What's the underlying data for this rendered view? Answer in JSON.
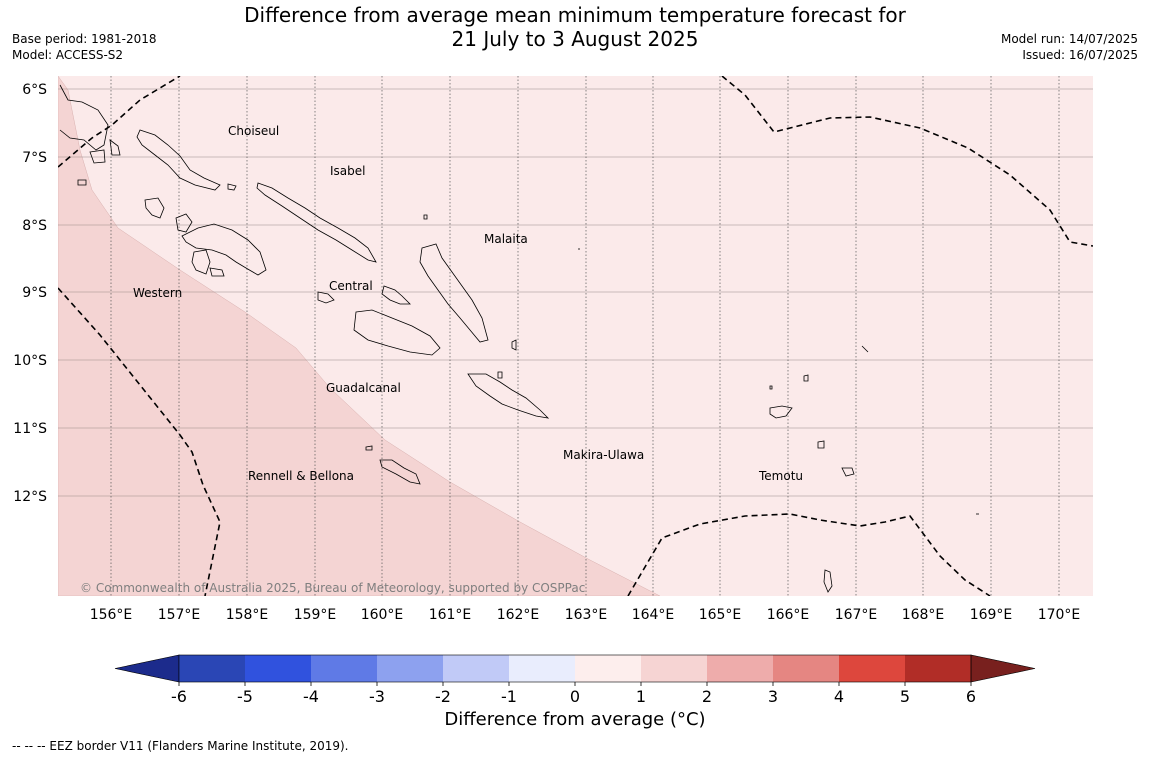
{
  "header": {
    "title_line1": "Difference from average mean minimum temperature forecast for",
    "title_line2": "21 July to 3 August 2025",
    "base_period": "Base period: 1981-2018",
    "model": "Model: ACCESS-S2",
    "model_run": "Model run: 14/07/2025",
    "issued": "Issued: 16/07/2025"
  },
  "map": {
    "latitude_labels": [
      "6°S",
      "7°S",
      "8°S",
      "9°S",
      "10°S",
      "11°S",
      "12°S"
    ],
    "longitude_labels": [
      "156°E",
      "157°E",
      "158°E",
      "159°E",
      "160°E",
      "161°E",
      "162°E",
      "163°E",
      "164°E",
      "165°E",
      "166°E",
      "167°E",
      "168°E",
      "169°E",
      "170°E"
    ],
    "region_labels": [
      "Choiseul",
      "Isabel",
      "Malaita",
      "Western",
      "Central",
      "Guadalcanal",
      "Makira-Ulawa",
      "Temotu",
      "Rennell & Bellona"
    ],
    "copyright": "© Commonwealth of Australia 2025, Bureau of Meteorology, supported by COSPPac",
    "fill_colors": {
      "range_0_1": "#fbeaea",
      "range_1_2": "#f4d4d3"
    }
  },
  "colorbar": {
    "tick_labels": [
      "-6",
      "-5",
      "-4",
      "-3",
      "-2",
      "-1",
      "0",
      "1",
      "2",
      "3",
      "4",
      "5",
      "6"
    ],
    "colors": [
      "#1c2b8c",
      "#2a46b5",
      "#3052de",
      "#5f7ae6",
      "#8da1ef",
      "#c1caf7",
      "#e9edfd",
      "#fdeeed",
      "#f6d4d3",
      "#eeacab",
      "#e58682",
      "#dd473d",
      "#b12d27",
      "#78201e"
    ],
    "label": "Difference from average (°C)"
  },
  "footer": {
    "eez_note": "--  --  -- EEZ border V11 (Flanders Marine Institute, 2019)."
  }
}
